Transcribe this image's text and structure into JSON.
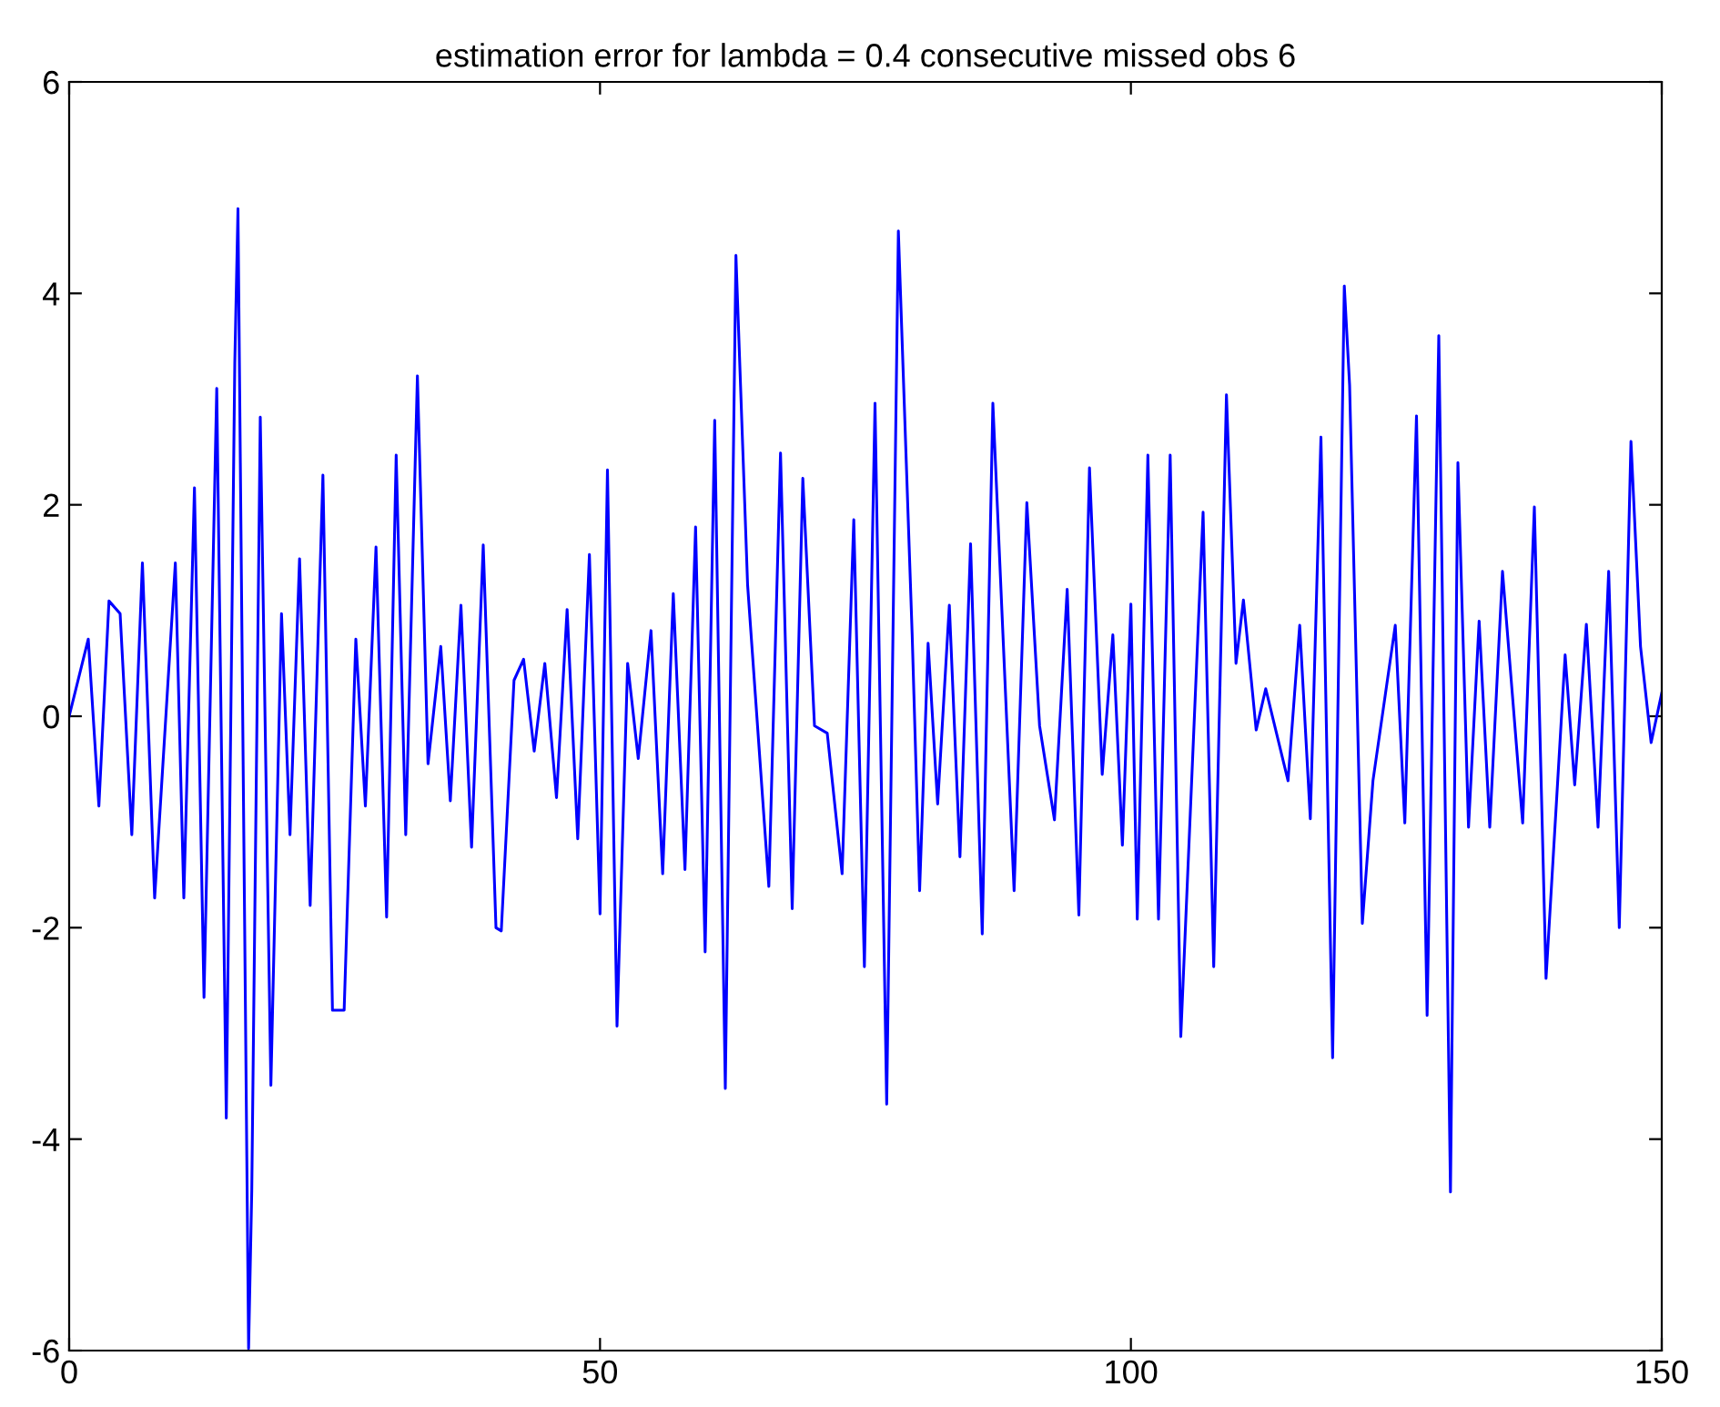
{
  "chart_data": {
    "type": "line",
    "title": "estimation error for lambda = 0.4 consecutive missed obs 6",
    "xlim": [
      0,
      150
    ],
    "ylim": [
      -6,
      6
    ],
    "xticks": [
      0,
      50,
      100,
      150
    ],
    "yticks": [
      -6,
      -4,
      -2,
      0,
      2,
      4,
      6
    ],
    "grid": false,
    "marker": "none",
    "line_style": "solid",
    "series": [
      {
        "color": "#0000ff",
        "x": [
          0,
          1.8,
          2.8,
          3.75,
          4.8,
          5.9,
          6.9,
          8.05,
          10,
          10.8,
          11.8,
          12.7,
          13.9,
          14.8,
          15.6,
          15.9,
          16.9,
          17.2,
          18,
          19,
          20,
          20.8,
          21.7,
          22.7,
          23.9,
          24.8,
          25.9,
          27,
          27.9,
          28.9,
          29.9,
          30.8,
          31.7,
          32.8,
          33.8,
          35,
          35.9,
          36.9,
          37.9,
          39,
          40.2,
          40.7,
          41.9,
          42.8,
          43.8,
          44.8,
          45.9,
          46.9,
          47.9,
          49,
          50,
          50.7,
          51.6,
          52.6,
          53.6,
          54.8,
          55.9,
          56.9,
          58,
          59,
          59.9,
          60.8,
          61.8,
          62.8,
          63.9,
          65.9,
          67,
          68.1,
          69.1,
          70.2,
          71.4,
          72.8,
          73.9,
          74.9,
          75.9,
          77,
          78.1,
          79.4,
          80.1,
          80.9,
          81.8,
          82.9,
          83.9,
          84.9,
          86,
          87,
          89,
          90.2,
          91.4,
          92.8,
          94,
          95.1,
          96.1,
          97.3,
          98.3,
          99.2,
          100,
          100.6,
          101.6,
          102.6,
          103.7,
          104.7,
          106.8,
          107.8,
          109,
          109.9,
          110.6,
          111.8,
          112.7,
          114.8,
          115.9,
          116.9,
          117.9,
          119,
          120.1,
          120.6,
          121.8,
          122.8,
          124.9,
          125.8,
          126.9,
          127.9,
          129,
          130.1,
          130.8,
          131.8,
          132.8,
          133.8,
          135,
          136.9,
          138,
          139.1,
          140.9,
          141.8,
          142.9,
          144,
          145,
          146,
          147.1,
          148,
          149,
          150
        ],
        "values": [
          0,
          0.73,
          -0.85,
          1.09,
          0.97,
          -1.12,
          1.45,
          -1.72,
          1.45,
          -1.72,
          2.16,
          -2.66,
          3.1,
          -3.8,
          3.34,
          4.8,
          -5.98,
          -4.48,
          2.83,
          -3.49,
          0.97,
          -1.12,
          1.49,
          -1.79,
          2.28,
          -2.78,
          -2.78,
          0.73,
          -0.85,
          1.6,
          -1.9,
          2.47,
          -1.12,
          3.22,
          -0.45,
          0.66,
          -0.8,
          1.05,
          -1.24,
          1.62,
          -2.0,
          -2.03,
          0.34,
          0.54,
          -0.33,
          0.5,
          -0.77,
          1.01,
          -1.16,
          1.53,
          -1.87,
          2.33,
          -2.93,
          0.5,
          -0.4,
          0.81,
          -1.49,
          1.16,
          -1.45,
          1.79,
          -2.23,
          2.8,
          -3.52,
          4.36,
          1.24,
          -1.61,
          2.49,
          -1.82,
          2.25,
          -0.09,
          -0.16,
          -1.49,
          1.86,
          -2.37,
          2.96,
          -3.67,
          4.59,
          0.77,
          -1.65,
          0.69,
          -0.83,
          1.05,
          -1.33,
          1.63,
          -2.06,
          2.96,
          -1.65,
          2.02,
          -0.09,
          -0.98,
          1.2,
          -1.88,
          2.35,
          -0.55,
          0.77,
          -1.22,
          1.06,
          -1.92,
          2.47,
          -1.92,
          2.47,
          -3.03,
          1.93,
          -2.37,
          3.04,
          0.5,
          1.1,
          -0.13,
          0.26,
          -0.61,
          0.86,
          -0.97,
          2.64,
          -3.23,
          4.07,
          3.13,
          -1.96,
          -0.61,
          0.86,
          -1.01,
          2.84,
          -2.83,
          3.6,
          -4.5,
          2.4,
          -1.05,
          0.9,
          -1.05,
          1.37,
          -1.01,
          1.98,
          -2.48,
          0.58,
          -0.65,
          0.87,
          -1.05,
          1.37,
          -2.0,
          2.6,
          0.66,
          -0.25,
          0.22
        ]
      }
    ]
  }
}
